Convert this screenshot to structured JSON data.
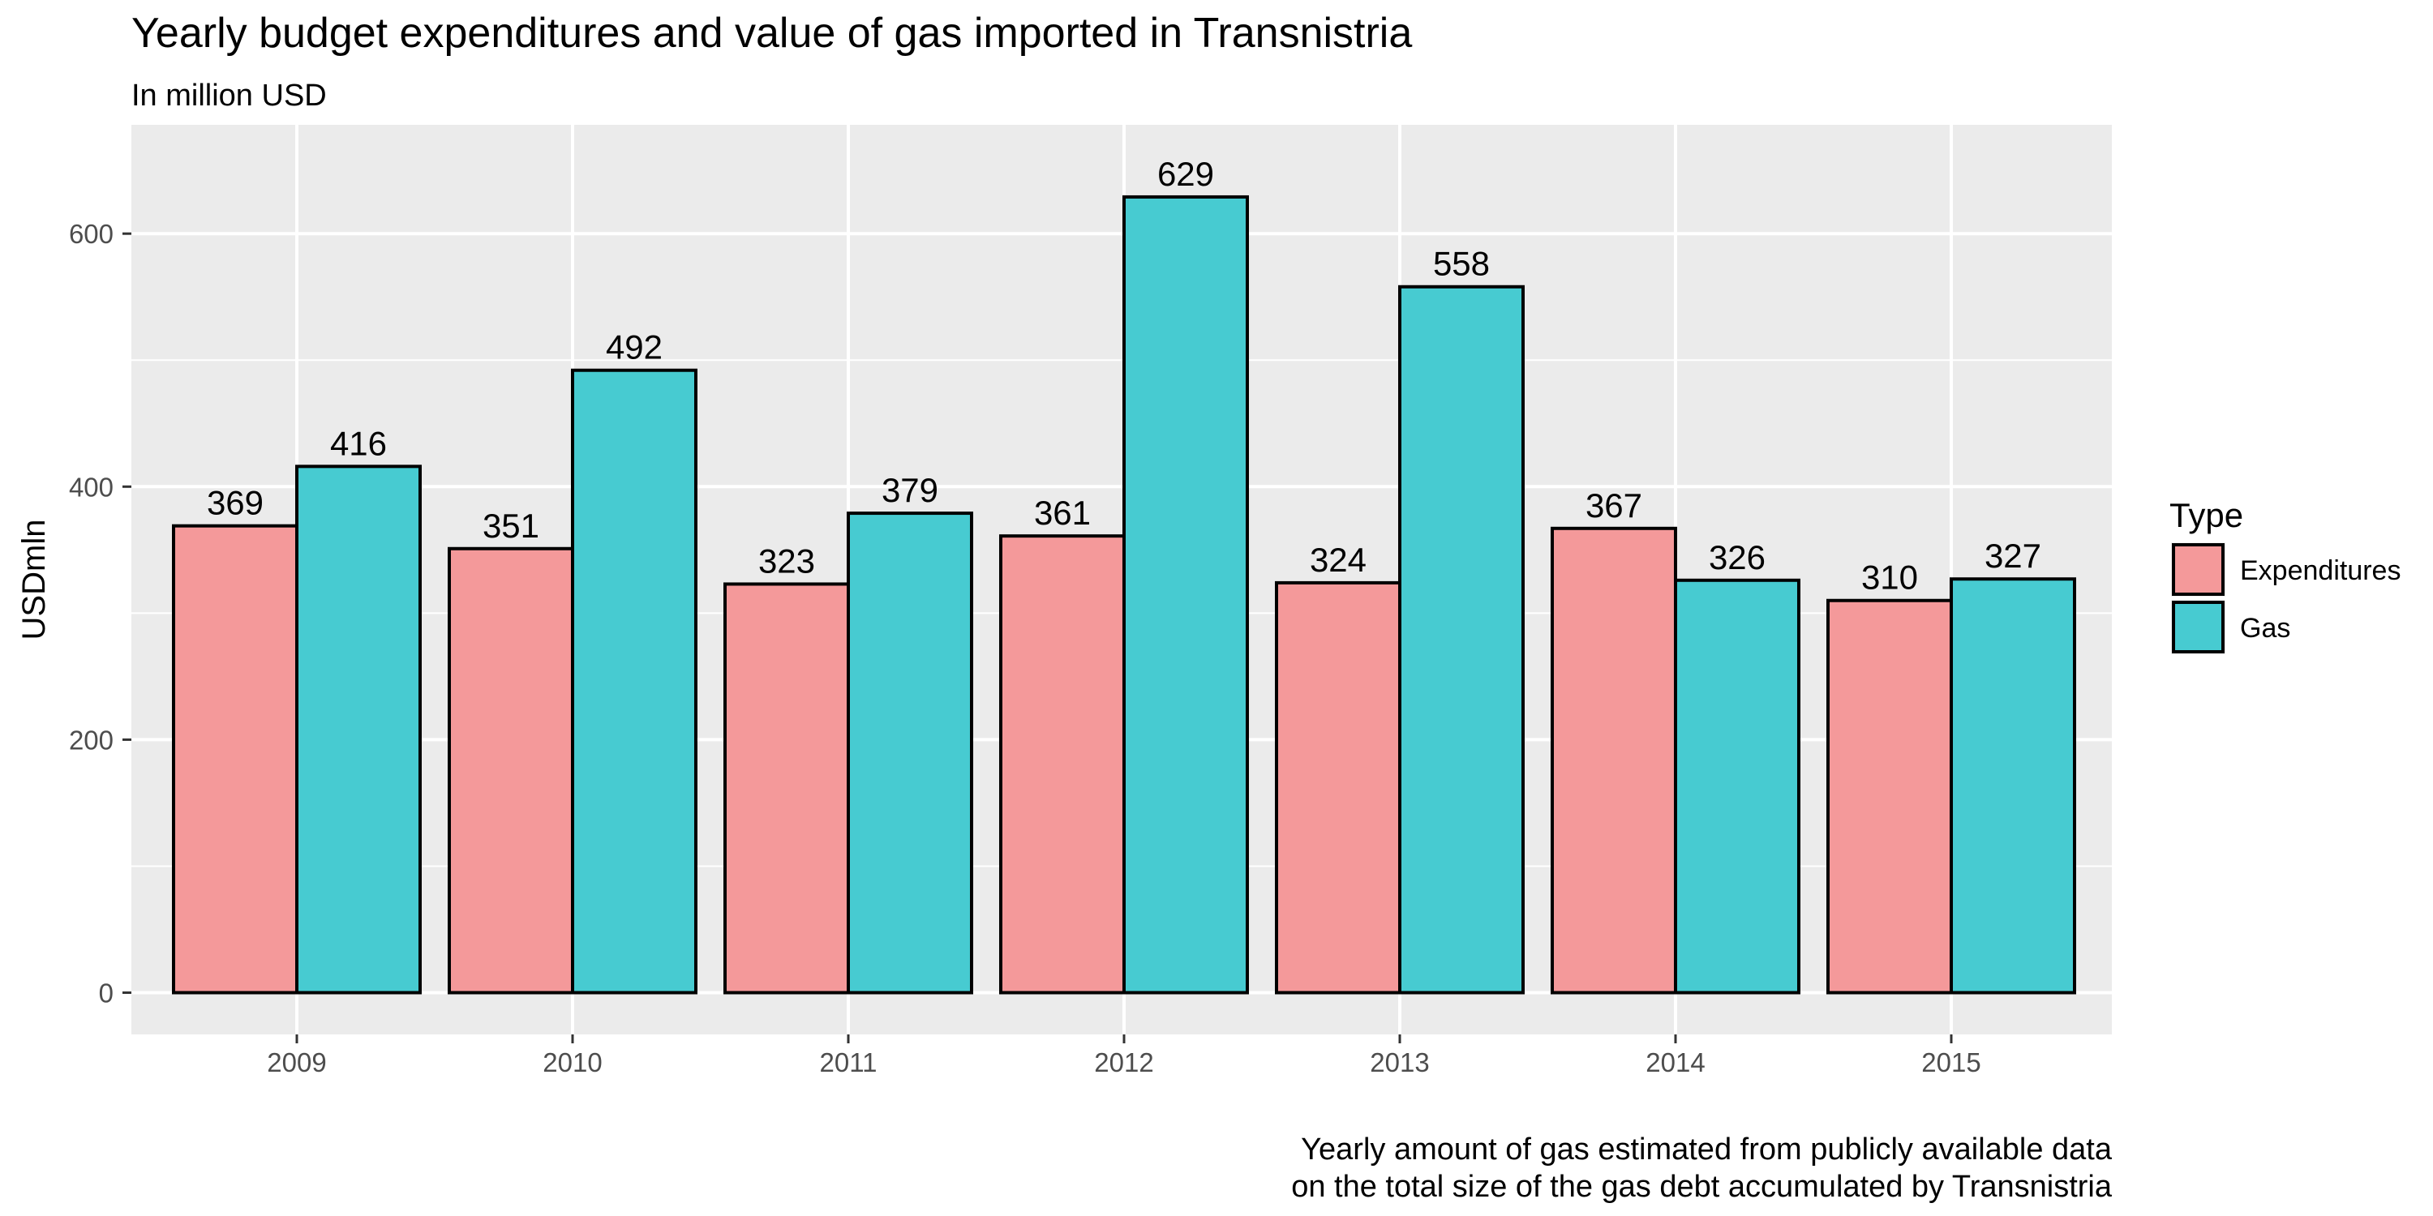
{
  "chart_data": {
    "type": "bar",
    "title": "Yearly budget expenditures and value of gas imported in Transnistria",
    "subtitle": "In million USD",
    "xlabel": "",
    "ylabel": "USDmln",
    "categories": [
      "2009",
      "2010",
      "2011",
      "2012",
      "2013",
      "2014",
      "2015"
    ],
    "series": [
      {
        "name": "Expenditures",
        "values": [
          369,
          351,
          323,
          361,
          324,
          367,
          310
        ],
        "color": "#f4999a"
      },
      {
        "name": "Gas",
        "values": [
          416,
          492,
          379,
          629,
          558,
          326,
          327
        ],
        "color": "#47cbd1"
      }
    ],
    "yticks": [
      0,
      200,
      400,
      600
    ],
    "ylim": [
      -33,
      686
    ],
    "grid": true,
    "legend": {
      "title": "Type",
      "position": "right"
    },
    "caption_lines": [
      "Yearly amount of gas estimated from publicly available data",
      "on the total size of the gas debt accumulated by Transnistria"
    ],
    "colors": {
      "panel_background": "#ebebeb",
      "gridline": "#ffffff",
      "bar_outline": "#000000"
    }
  }
}
